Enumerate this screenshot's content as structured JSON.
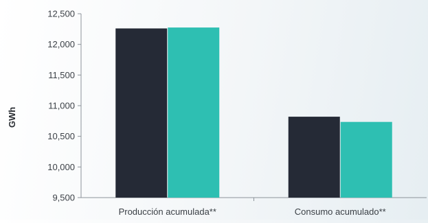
{
  "chart_data": {
    "type": "bar",
    "title": "",
    "xlabel": "",
    "ylabel": "GWh",
    "ylim": [
      9500,
      12500
    ],
    "yticks": [
      9500,
      10000,
      10500,
      11000,
      11500,
      12000,
      12500
    ],
    "ytick_labels": [
      "9,500",
      "10,000",
      "10,500",
      "11,000",
      "11,500",
      "12,000",
      "12,500"
    ],
    "categories": [
      "Producción acumulada**",
      "Consumo acumulado**"
    ],
    "series": [
      {
        "values": [
          12260,
          10820
        ],
        "color": "#252a36"
      },
      {
        "values": [
          12275,
          10735
        ],
        "color": "#2ebfb2"
      }
    ],
    "grid": false,
    "legend": "none"
  }
}
